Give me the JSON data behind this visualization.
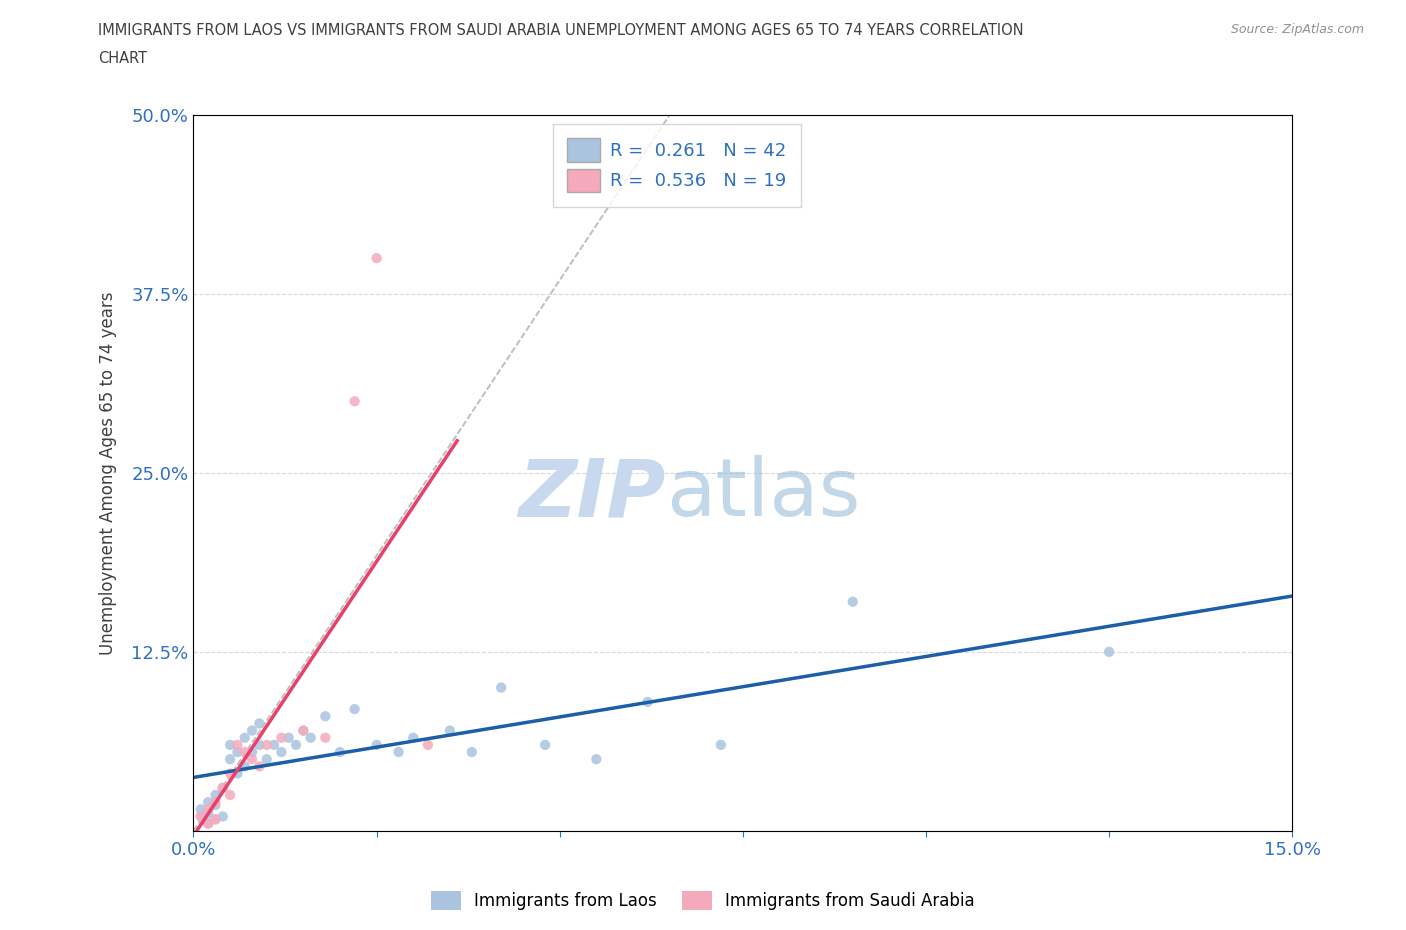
{
  "title_line1": "IMMIGRANTS FROM LAOS VS IMMIGRANTS FROM SAUDI ARABIA UNEMPLOYMENT AMONG AGES 65 TO 74 YEARS CORRELATION",
  "title_line2": "CHART",
  "source_text": "Source: ZipAtlas.com",
  "ylabel": "Unemployment Among Ages 65 to 74 years",
  "xlim": [
    0.0,
    0.15
  ],
  "ylim": [
    0.0,
    0.5
  ],
  "xticks": [
    0.0,
    0.025,
    0.05,
    0.075,
    0.1,
    0.125,
    0.15
  ],
  "xticklabels": [
    "0.0%",
    "",
    "",
    "",
    "",
    "",
    "15.0%"
  ],
  "yticks": [
    0.0,
    0.125,
    0.25,
    0.375,
    0.5
  ],
  "yticklabels": [
    "",
    "12.5%",
    "25.0%",
    "37.5%",
    "50.0%"
  ],
  "laos_x": [
    0.001,
    0.001,
    0.002,
    0.002,
    0.002,
    0.003,
    0.003,
    0.003,
    0.004,
    0.004,
    0.005,
    0.005,
    0.006,
    0.006,
    0.007,
    0.007,
    0.008,
    0.008,
    0.009,
    0.009,
    0.01,
    0.011,
    0.012,
    0.013,
    0.014,
    0.015,
    0.016,
    0.018,
    0.02,
    0.022,
    0.025,
    0.028,
    0.03,
    0.035,
    0.038,
    0.042,
    0.048,
    0.055,
    0.062,
    0.072,
    0.09,
    0.125
  ],
  "laos_y": [
    0.01,
    0.015,
    0.005,
    0.012,
    0.02,
    0.008,
    0.018,
    0.025,
    0.01,
    0.03,
    0.05,
    0.06,
    0.04,
    0.055,
    0.045,
    0.065,
    0.055,
    0.07,
    0.06,
    0.075,
    0.05,
    0.06,
    0.055,
    0.065,
    0.06,
    0.07,
    0.065,
    0.08,
    0.055,
    0.085,
    0.06,
    0.055,
    0.065,
    0.07,
    0.055,
    0.1,
    0.06,
    0.05,
    0.09,
    0.06,
    0.16,
    0.125
  ],
  "saudi_x": [
    0.001,
    0.002,
    0.002,
    0.003,
    0.003,
    0.004,
    0.005,
    0.005,
    0.006,
    0.007,
    0.008,
    0.009,
    0.01,
    0.012,
    0.015,
    0.018,
    0.022,
    0.025,
    0.032
  ],
  "saudi_y": [
    0.01,
    0.005,
    0.015,
    0.008,
    0.02,
    0.03,
    0.025,
    0.04,
    0.06,
    0.055,
    0.05,
    0.045,
    0.06,
    0.065,
    0.07,
    0.065,
    0.3,
    0.4,
    0.06
  ],
  "laos_color": "#aac4e0",
  "saudi_color": "#f5aabb",
  "laos_line_color": "#1a5fa8",
  "saudi_line_color": "#e8406a",
  "diag_line_color": "#c0c0c0",
  "R_laos": 0.261,
  "N_laos": 42,
  "R_saudi": 0.536,
  "N_saudi": 19,
  "watermark_zip_color": "#c8d8ee",
  "watermark_atlas_color": "#90b8d8",
  "grid_color": "#d8d8d8",
  "background_color": "#ffffff",
  "title_color": "#404040",
  "axis_label_color": "#404040",
  "tick_label_color": "#3070c0",
  "legend_label1": "Immigrants from Laos",
  "legend_label2": "Immigrants from Saudi Arabia",
  "marker_size": 55
}
